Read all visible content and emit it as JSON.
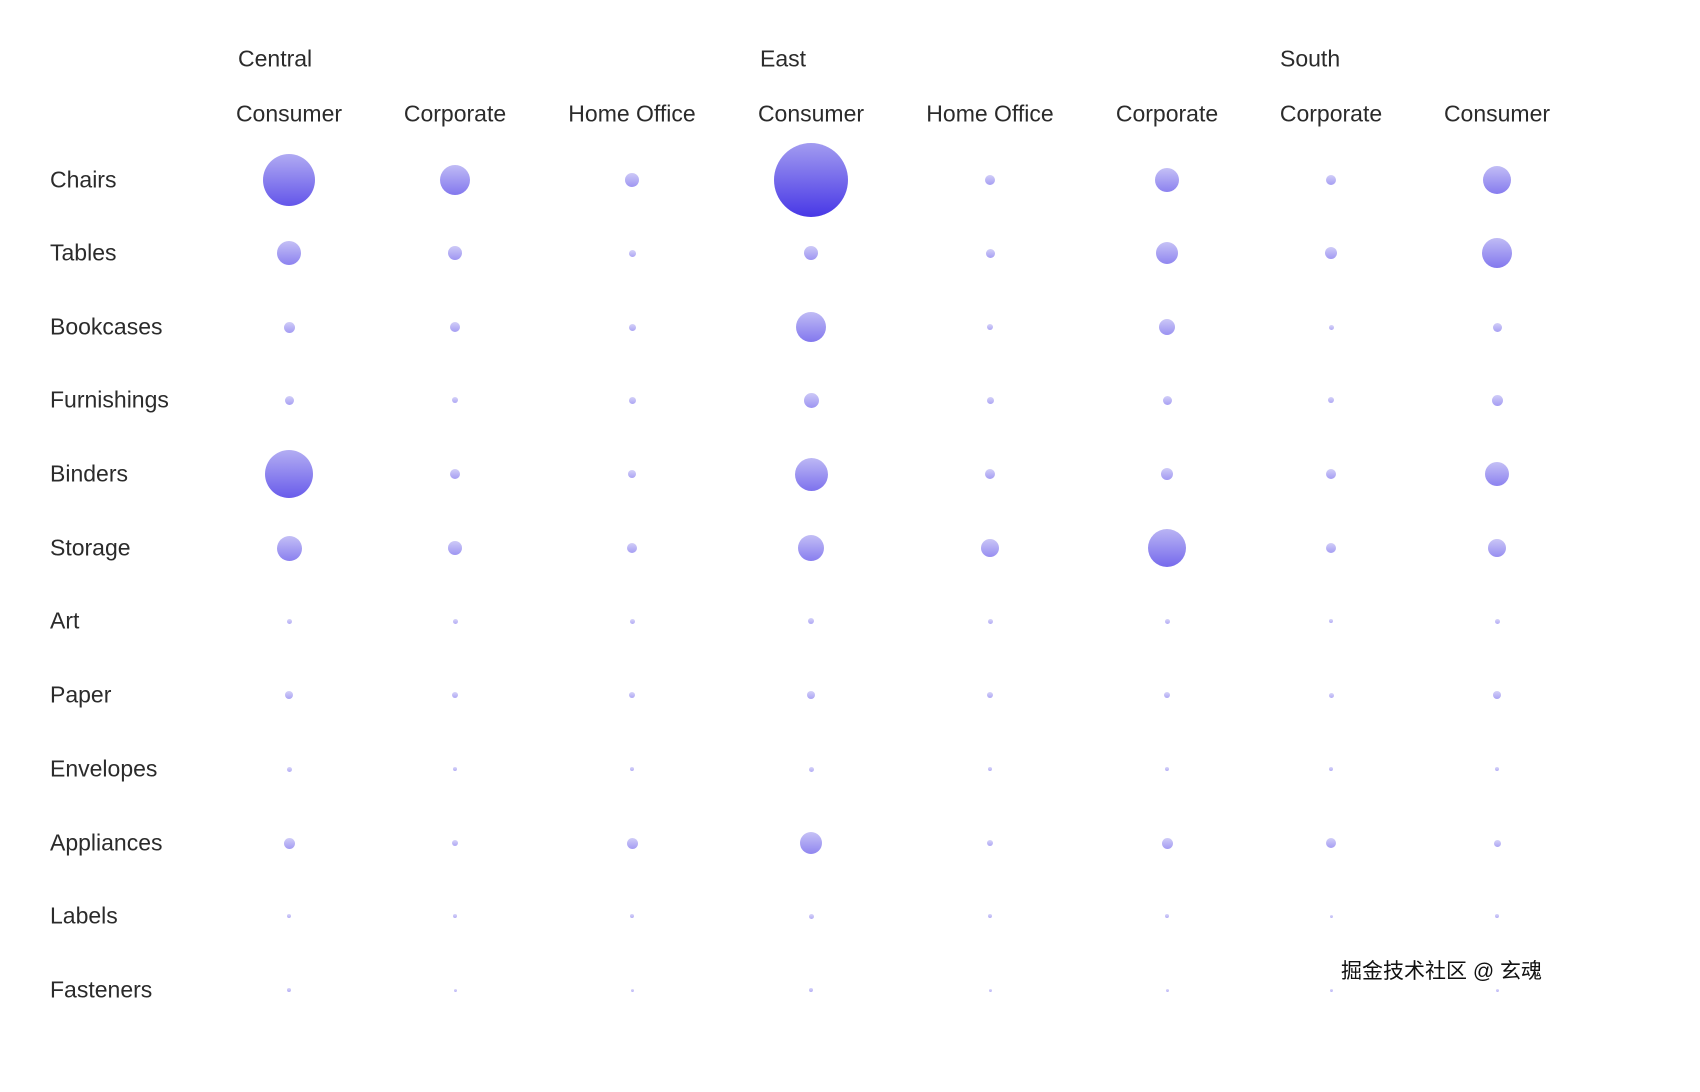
{
  "chart_data": {
    "type": "scatter",
    "subtype": "bubble-matrix",
    "title": "",
    "legend": null,
    "grid": false,
    "rows": [
      "Chairs",
      "Tables",
      "Bookcases",
      "Furnishings",
      "Binders",
      "Storage",
      "Art",
      "Paper",
      "Envelopes",
      "Appliances",
      "Labels",
      "Fasteners"
    ],
    "column_groups": [
      {
        "label": "Central",
        "columns": [
          "Consumer",
          "Corporate",
          "Home Office"
        ]
      },
      {
        "label": "East",
        "columns": [
          "Consumer",
          "Home Office",
          "Corporate"
        ]
      },
      {
        "label": "South",
        "columns": [
          "Corporate",
          "Consumer"
        ]
      }
    ],
    "size_units": "bubble diameter in px, proportional to underlying metric (no numeric labels shown in chart)",
    "sizes": [
      [
        52,
        30,
        14,
        74,
        10,
        24,
        10,
        28
      ],
      [
        24,
        14,
        7,
        14,
        9,
        22,
        12,
        30
      ],
      [
        11,
        10,
        7,
        30,
        6,
        16,
        5,
        9
      ],
      [
        9,
        6,
        7,
        15,
        7,
        9,
        6,
        11
      ],
      [
        48,
        10,
        8,
        33,
        10,
        12,
        10,
        24
      ],
      [
        25,
        14,
        10,
        26,
        18,
        38,
        10,
        18
      ],
      [
        5,
        5,
        5,
        6,
        5,
        5,
        4,
        5
      ],
      [
        8,
        6,
        6,
        8,
        6,
        6,
        5,
        8
      ],
      [
        5,
        4,
        4,
        5,
        4,
        4,
        4,
        4
      ],
      [
        11,
        6,
        11,
        22,
        6,
        11,
        10,
        7
      ],
      [
        4,
        4,
        4,
        5,
        4,
        4,
        3,
        4
      ],
      [
        4,
        3,
        3,
        4,
        3,
        3,
        3,
        3
      ]
    ]
  },
  "watermark": "掘金技术社区 @ 玄魂",
  "colors": {
    "background": "#ffffff",
    "label": "#2b2b2b",
    "bubble_gradient_top": "#a29bf0",
    "bubble_gradient_bottom": "#4838e6"
  }
}
